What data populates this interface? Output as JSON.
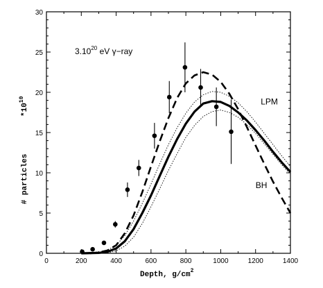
{
  "chart_data": {
    "type": "line",
    "title": "",
    "xlabel": "Depth, g/cm",
    "xlabel_sup": "2",
    "ylabel": "# particles",
    "y_multiplier": "*10",
    "y_multiplier_sup": "10",
    "xlim": [
      0,
      1400
    ],
    "ylim": [
      0,
      30
    ],
    "x_ticks": [
      0,
      200,
      400,
      600,
      800,
      1000,
      1200,
      1400
    ],
    "y_ticks": [
      0,
      5,
      10,
      15,
      20,
      25,
      30
    ],
    "grid": false,
    "annotation": {
      "prefix": "3.10",
      "sup": "20",
      "suffix": " eV γ−ray"
    },
    "series": [
      {
        "name": "LPM",
        "style": "thick-solid",
        "x": [
          200,
          300,
          350,
          400,
          450,
          500,
          550,
          600,
          650,
          700,
          750,
          800,
          850,
          900,
          950,
          1000,
          1050,
          1100,
          1150,
          1200,
          1250,
          1300,
          1350,
          1400
        ],
        "y": [
          0,
          0.05,
          0.2,
          0.6,
          1.5,
          3.0,
          5.0,
          7.2,
          9.6,
          12.0,
          14.2,
          16.1,
          17.6,
          18.6,
          18.9,
          18.8,
          18.3,
          17.5,
          16.5,
          15.3,
          14.0,
          12.6,
          11.3,
          10.1
        ]
      },
      {
        "name": "BH",
        "style": "dashed",
        "x": [
          250,
          300,
          350,
          400,
          450,
          500,
          550,
          600,
          650,
          700,
          750,
          800,
          850,
          900,
          950,
          1000,
          1050,
          1100,
          1150,
          1200,
          1250,
          1300,
          1350,
          1400
        ],
        "y": [
          0,
          0.1,
          0.35,
          1.0,
          2.5,
          4.7,
          7.6,
          10.8,
          13.9,
          16.8,
          19.3,
          21.1,
          22.1,
          22.5,
          22.2,
          21.3,
          19.8,
          17.9,
          15.7,
          13.4,
          11.1,
          8.9,
          6.9,
          5.0
        ]
      },
      {
        "name": "",
        "style": "dotted",
        "x": [
          300,
          350,
          400,
          450,
          500,
          550,
          600,
          650,
          700,
          750,
          800,
          850,
          900,
          950,
          1000,
          1050,
          1100,
          1150,
          1200,
          1250,
          1300,
          1350,
          1400
        ],
        "y": [
          0.1,
          0.4,
          1.0,
          2.2,
          4.0,
          6.2,
          8.6,
          11.1,
          13.5,
          15.6,
          17.4,
          18.8,
          19.7,
          20.1,
          20.0,
          19.5,
          18.7,
          17.6,
          16.3,
          14.9,
          13.5,
          12.1,
          10.8
        ]
      },
      {
        "name": "",
        "style": "dotted",
        "x": [
          350,
          400,
          450,
          500,
          550,
          600,
          650,
          700,
          750,
          800,
          850,
          900,
          950,
          1000,
          1050,
          1100,
          1150,
          1200,
          1250,
          1300,
          1350,
          1400
        ],
        "y": [
          0.05,
          0.3,
          0.9,
          2.0,
          3.7,
          5.8,
          8.0,
          10.3,
          12.4,
          14.4,
          15.9,
          17.0,
          17.6,
          17.8,
          17.5,
          16.9,
          16.0,
          14.9,
          13.6,
          12.3,
          11.0,
          9.8
        ]
      }
    ],
    "data_points": {
      "x": [
        205,
        265,
        330,
        395,
        465,
        530,
        620,
        705,
        795,
        885,
        975,
        1060
      ],
      "y": [
        0.2,
        0.5,
        1.3,
        3.6,
        7.9,
        10.6,
        14.6,
        19.4,
        23.1,
        20.6,
        18.2,
        15.1
      ],
      "err": [
        0.1,
        0.1,
        0.2,
        0.4,
        0.9,
        1.0,
        1.6,
        2.0,
        3.1,
        2.3,
        2.4,
        4.0
      ]
    },
    "labels": [
      {
        "text": "LPM",
        "x": 1230,
        "y": 18.5
      },
      {
        "text": "BH",
        "x": 1200,
        "y": 8.1
      }
    ]
  }
}
